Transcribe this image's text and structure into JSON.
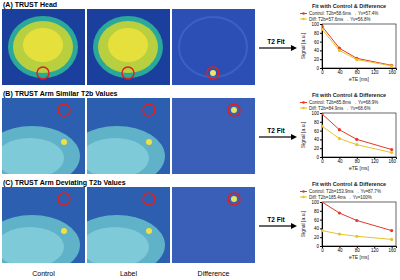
{
  "figure": {
    "rows": [
      "(A) TRUST Head",
      "(B) TRUST Arm Similar T2b Values",
      "(C) TRUST Arm Deviating T2b Values"
    ],
    "columns": [
      "Control",
      "Label",
      "Difference"
    ],
    "arrow_label": "T2 Fit"
  },
  "chart_data": [
    {
      "type": "line",
      "title": "Fit with Control & Difference",
      "x_label": "eTE [ms]",
      "y_label": "Signal [a.u.]",
      "x": [
        0,
        40,
        80,
        160
      ],
      "series": [
        {
          "name": "Control: T2b=58.6ms → Yv=57.4%",
          "color": "#e03a2a",
          "marker": "circle",
          "values": [
            95,
            45,
            22,
            6
          ]
        },
        {
          "name": "Diff: T2b=57.6ms → Yv=56.8%",
          "color": "#e8c22a",
          "marker": "circle",
          "values": [
            88,
            40,
            19,
            5
          ]
        }
      ],
      "xlim": [
        0,
        170
      ],
      "xticks": [
        0,
        40,
        80,
        120,
        160
      ],
      "ylim": [
        0,
        100
      ],
      "yticks": [
        0,
        20,
        40,
        60,
        80,
        100
      ],
      "legend": "upper right"
    },
    {
      "type": "line",
      "title": "Fit with Control & Difference",
      "x_label": "eTE [ms]",
      "y_label": "Signal [a.u.]",
      "x": [
        0,
        40,
        80,
        160
      ],
      "series": [
        {
          "name": "Control: T2b=85.8ms → Yv=68.9%",
          "color": "#e03a2a",
          "marker": "circle",
          "values": [
            98,
            62,
            40,
            17
          ]
        },
        {
          "name": "Diff: T2b=84.9ms → Yv=68.6%",
          "color": "#e8c22a",
          "marker": "circle",
          "values": [
            70,
            42,
            28,
            10
          ]
        }
      ],
      "xlim": [
        0,
        170
      ],
      "xticks": [
        0,
        40,
        80,
        120,
        160
      ],
      "ylim": [
        0,
        100
      ],
      "yticks": [
        0,
        20,
        40,
        60,
        80,
        100
      ],
      "legend": "upper right"
    },
    {
      "type": "line",
      "title": "Fit with Control & Difference",
      "x_label": "eTE [ms]",
      "y_label": "Signal [a.u.]",
      "x": [
        0,
        40,
        80,
        160
      ],
      "series": [
        {
          "name": "Control: T2b=153.9ms → Yv=87.7%",
          "color": "#e03a2a",
          "marker": "circle",
          "values": [
            100,
            75,
            58,
            35
          ]
        },
        {
          "name": "Diff: T2b=185.4ms → Yv=100%",
          "color": "#e8c22a",
          "marker": "circle",
          "values": [
            35,
            27,
            22,
            15
          ]
        }
      ],
      "xlim": [
        0,
        170
      ],
      "xticks": [
        0,
        40,
        80,
        120,
        160
      ],
      "ylim": [
        0,
        100
      ],
      "yticks": [
        0,
        20,
        40,
        60,
        80,
        100
      ],
      "legend": "upper right"
    }
  ]
}
